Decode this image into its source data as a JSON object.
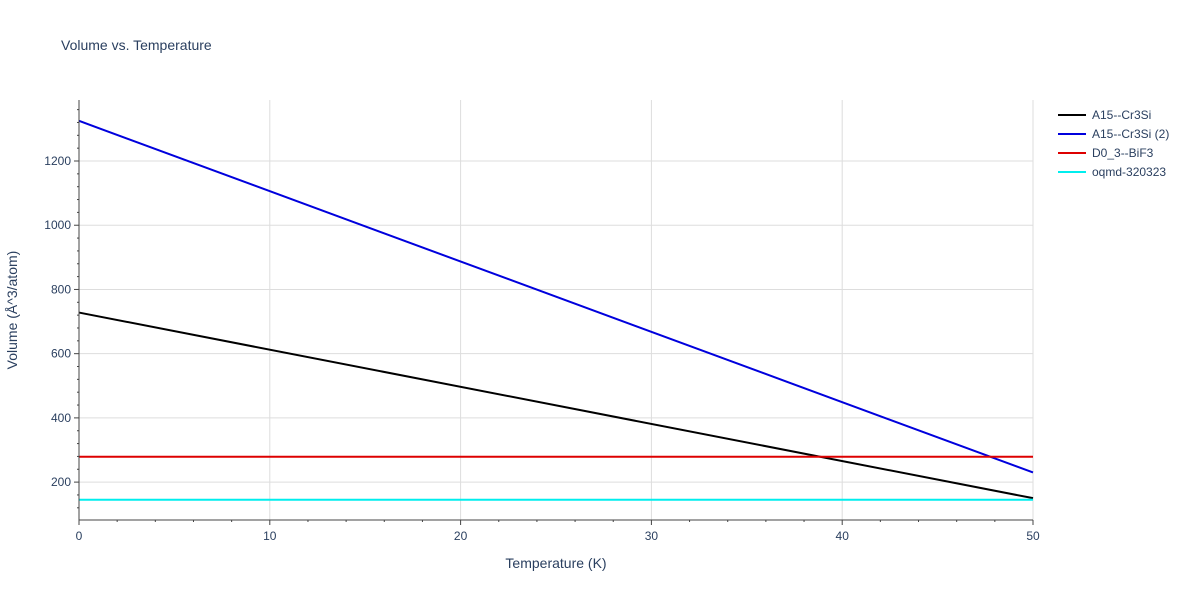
{
  "chart_data": {
    "type": "line",
    "title": "Volume vs. Temperature",
    "xlabel": "Temperature (K)",
    "ylabel": "Volume (Å^3/atom)",
    "xlim": [
      0,
      50
    ],
    "ylim": [
      82,
      1390
    ],
    "x_ticks": [
      0,
      10,
      20,
      30,
      40,
      50
    ],
    "y_ticks": [
      200,
      400,
      600,
      800,
      1000,
      1200
    ],
    "grid": true,
    "legend_position": "top-right",
    "series": [
      {
        "name": "A15--Cr3Si",
        "color": "#000000",
        "x": [
          0,
          50
        ],
        "y": [
          728,
          150
        ]
      },
      {
        "name": "A15--Cr3Si (2)",
        "color": "#0000dd",
        "x": [
          0,
          50
        ],
        "y": [
          1325,
          230
        ]
      },
      {
        "name": "D0_3--BiF3",
        "color": "#dd0000",
        "x": [
          0,
          50
        ],
        "y": [
          279,
          279
        ]
      },
      {
        "name": "oqmd-320323",
        "color": "#00eeee",
        "x": [
          0,
          50
        ],
        "y": [
          145,
          145
        ]
      }
    ]
  }
}
